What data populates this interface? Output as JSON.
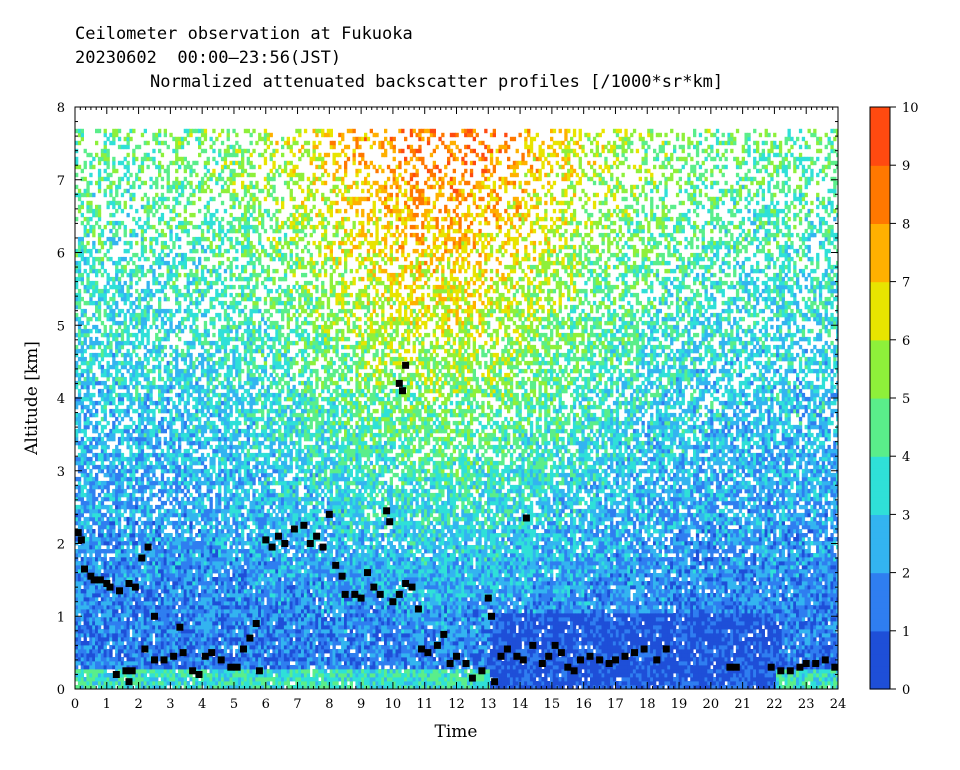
{
  "header": {
    "line1": "Ceilometer observation at Fukuoka",
    "line2": "20230602  00:00–23:56(JST)",
    "line3": "Normalized attenuated backscatter profiles [/1000*sr*km]"
  },
  "chart_data": {
    "type": "heatmap",
    "title": "Normalized attenuated backscatter profiles [/1000*sr*km]",
    "xlabel": "Time",
    "ylabel": "Altitude [km]",
    "xlim": [
      0,
      24
    ],
    "ylim": [
      0,
      8
    ],
    "x_ticks": [
      "0",
      "1",
      "2",
      "3",
      "4",
      "5",
      "6",
      "7",
      "8",
      "9",
      "10",
      "11",
      "12",
      "13",
      "14",
      "15",
      "16",
      "17",
      "18",
      "19",
      "20",
      "21",
      "22",
      "23",
      "24"
    ],
    "y_ticks": [
      "0",
      "1",
      "2",
      "3",
      "4",
      "5",
      "6",
      "7",
      "8"
    ],
    "colorbar": {
      "range": [
        0,
        10
      ],
      "ticks": [
        "0",
        "1",
        "2",
        "3",
        "4",
        "5",
        "6",
        "7",
        "8",
        "9",
        "10"
      ],
      "colors": [
        "#1e4fd8",
        "#2f7ef0",
        "#33b4f0",
        "#2fe0d8",
        "#5aee8a",
        "#8ef03a",
        "#e8e400",
        "#ffb000",
        "#ff7800",
        "#ff4a10",
        "#f02a0a"
      ]
    },
    "data_top_km": 7.65,
    "cloud_base": [
      {
        "t": 0.1,
        "h": 2.15
      },
      {
        "t": 0.2,
        "h": 2.05
      },
      {
        "t": 0.3,
        "h": 1.65
      },
      {
        "t": 0.5,
        "h": 1.55
      },
      {
        "t": 0.6,
        "h": 1.5
      },
      {
        "t": 0.8,
        "h": 1.5
      },
      {
        "t": 1.0,
        "h": 1.45
      },
      {
        "t": 1.1,
        "h": 1.4
      },
      {
        "t": 1.4,
        "h": 1.35
      },
      {
        "t": 1.7,
        "h": 1.45
      },
      {
        "t": 1.9,
        "h": 1.4
      },
      {
        "t": 2.1,
        "h": 1.8
      },
      {
        "t": 2.3,
        "h": 1.95
      },
      {
        "t": 2.5,
        "h": 1.0
      },
      {
        "t": 1.3,
        "h": 0.2
      },
      {
        "t": 1.6,
        "h": 0.25
      },
      {
        "t": 1.8,
        "h": 0.25
      },
      {
        "t": 1.7,
        "h": 0.1
      },
      {
        "t": 2.2,
        "h": 0.55
      },
      {
        "t": 2.5,
        "h": 0.4
      },
      {
        "t": 2.8,
        "h": 0.4
      },
      {
        "t": 3.1,
        "h": 0.45
      },
      {
        "t": 3.4,
        "h": 0.5
      },
      {
        "t": 3.3,
        "h": 0.85
      },
      {
        "t": 3.7,
        "h": 0.25
      },
      {
        "t": 3.9,
        "h": 0.2
      },
      {
        "t": 4.1,
        "h": 0.45
      },
      {
        "t": 4.3,
        "h": 0.5
      },
      {
        "t": 4.6,
        "h": 0.4
      },
      {
        "t": 4.9,
        "h": 0.3
      },
      {
        "t": 5.1,
        "h": 0.3
      },
      {
        "t": 5.3,
        "h": 0.55
      },
      {
        "t": 5.5,
        "h": 0.7
      },
      {
        "t": 5.7,
        "h": 0.9
      },
      {
        "t": 5.8,
        "h": 0.25
      },
      {
        "t": 6.0,
        "h": 2.05
      },
      {
        "t": 6.2,
        "h": 1.95
      },
      {
        "t": 6.4,
        "h": 2.1
      },
      {
        "t": 6.6,
        "h": 2.0
      },
      {
        "t": 6.9,
        "h": 2.2
      },
      {
        "t": 7.2,
        "h": 2.25
      },
      {
        "t": 7.4,
        "h": 2.0
      },
      {
        "t": 7.6,
        "h": 2.1
      },
      {
        "t": 7.8,
        "h": 1.95
      },
      {
        "t": 8.0,
        "h": 2.4
      },
      {
        "t": 8.2,
        "h": 1.7
      },
      {
        "t": 8.4,
        "h": 1.55
      },
      {
        "t": 8.5,
        "h": 1.3
      },
      {
        "t": 8.8,
        "h": 1.3
      },
      {
        "t": 9.0,
        "h": 1.25
      },
      {
        "t": 9.2,
        "h": 1.6
      },
      {
        "t": 9.4,
        "h": 1.4
      },
      {
        "t": 9.6,
        "h": 1.3
      },
      {
        "t": 9.8,
        "h": 2.45
      },
      {
        "t": 9.9,
        "h": 2.3
      },
      {
        "t": 10.0,
        "h": 1.2
      },
      {
        "t": 10.2,
        "h": 1.3
      },
      {
        "t": 10.4,
        "h": 1.45
      },
      {
        "t": 10.6,
        "h": 1.4
      },
      {
        "t": 10.8,
        "h": 1.1
      },
      {
        "t": 10.2,
        "h": 4.2
      },
      {
        "t": 10.3,
        "h": 4.1
      },
      {
        "t": 10.4,
        "h": 4.45
      },
      {
        "t": 10.9,
        "h": 0.55
      },
      {
        "t": 11.1,
        "h": 0.5
      },
      {
        "t": 11.4,
        "h": 0.6
      },
      {
        "t": 11.6,
        "h": 0.75
      },
      {
        "t": 11.8,
        "h": 0.35
      },
      {
        "t": 12.0,
        "h": 0.45
      },
      {
        "t": 12.3,
        "h": 0.35
      },
      {
        "t": 12.5,
        "h": 0.15
      },
      {
        "t": 12.8,
        "h": 0.25
      },
      {
        "t": 13.0,
        "h": 1.25
      },
      {
        "t": 13.1,
        "h": 1.0
      },
      {
        "t": 13.2,
        "h": 0.1
      },
      {
        "t": 13.4,
        "h": 0.45
      },
      {
        "t": 13.6,
        "h": 0.55
      },
      {
        "t": 13.9,
        "h": 0.45
      },
      {
        "t": 14.1,
        "h": 0.4
      },
      {
        "t": 14.2,
        "h": 2.35
      },
      {
        "t": 14.4,
        "h": 0.6
      },
      {
        "t": 14.7,
        "h": 0.35
      },
      {
        "t": 14.9,
        "h": 0.45
      },
      {
        "t": 15.1,
        "h": 0.6
      },
      {
        "t": 15.3,
        "h": 0.5
      },
      {
        "t": 15.5,
        "h": 0.3
      },
      {
        "t": 15.7,
        "h": 0.25
      },
      {
        "t": 15.9,
        "h": 0.4
      },
      {
        "t": 16.2,
        "h": 0.45
      },
      {
        "t": 16.5,
        "h": 0.4
      },
      {
        "t": 16.8,
        "h": 0.35
      },
      {
        "t": 17.0,
        "h": 0.4
      },
      {
        "t": 17.3,
        "h": 0.45
      },
      {
        "t": 17.6,
        "h": 0.5
      },
      {
        "t": 17.9,
        "h": 0.55
      },
      {
        "t": 18.3,
        "h": 0.4
      },
      {
        "t": 18.6,
        "h": 0.55
      },
      {
        "t": 20.6,
        "h": 0.3
      },
      {
        "t": 20.8,
        "h": 0.3
      },
      {
        "t": 21.9,
        "h": 0.3
      },
      {
        "t": 22.2,
        "h": 0.25
      },
      {
        "t": 22.5,
        "h": 0.25
      },
      {
        "t": 22.8,
        "h": 0.3
      },
      {
        "t": 23.0,
        "h": 0.35
      },
      {
        "t": 23.3,
        "h": 0.35
      },
      {
        "t": 23.6,
        "h": 0.4
      },
      {
        "t": 23.9,
        "h": 0.3
      }
    ]
  }
}
